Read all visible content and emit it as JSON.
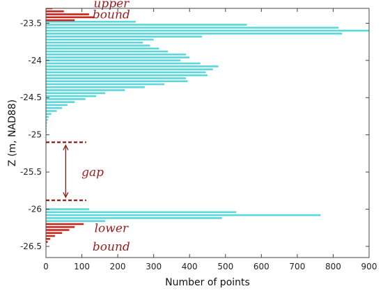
{
  "chart_data": {
    "type": "bar",
    "orientation": "horizontal",
    "xlabel": "Number of points",
    "ylabel": "Z (m, NAD88)",
    "xlim": [
      0,
      900
    ],
    "ylim": [
      -26.65,
      -23.3
    ],
    "x_ticks": [
      0,
      100,
      200,
      300,
      400,
      500,
      600,
      700,
      800,
      900
    ],
    "y_ticks": [
      -23.5,
      -24,
      -24.5,
      -25,
      -25.5,
      -26,
      -26.5
    ],
    "x_tick_labels": [
      "0",
      "100",
      "200",
      "300",
      "400",
      "500",
      "600",
      "700",
      "800",
      "900"
    ],
    "y_tick_labels": [
      "-23.5",
      "-24",
      "-24.5",
      "-25",
      "-25.5",
      "-26",
      "-26.5"
    ],
    "grid": false,
    "bin_height": 0.04,
    "colors": {
      "main": "#5dd8da",
      "bound": "#c8281e",
      "annotation": "#9b1c1c"
    },
    "series": [
      {
        "role": "main",
        "z": [
          -23.48,
          -23.52,
          -23.56,
          -23.6,
          -23.64,
          -23.68,
          -23.72,
          -23.76,
          -23.8,
          -23.84,
          -23.88,
          -23.92,
          -23.96,
          -24.0,
          -24.04,
          -24.08,
          -24.12,
          -24.16,
          -24.2,
          -24.24,
          -24.28,
          -24.32,
          -24.36,
          -24.4,
          -24.44,
          -24.48,
          -24.52,
          -24.56,
          -24.6,
          -24.64,
          -24.68,
          -24.72,
          -24.76,
          -24.8,
          -24.84,
          -24.88,
          -24.92,
          -24.96,
          -25.0,
          -25.04,
          -26.0,
          -26.04,
          -26.08,
          -26.12,
          -26.16
        ],
        "values": [
          250,
          560,
          815,
          900,
          825,
          435,
          300,
          270,
          290,
          315,
          340,
          390,
          400,
          375,
          430,
          480,
          465,
          445,
          450,
          390,
          395,
          330,
          275,
          220,
          165,
          140,
          110,
          80,
          60,
          45,
          30,
          15,
          8,
          5,
          3,
          2,
          2,
          2,
          1,
          1,
          120,
          530,
          765,
          490,
          165
        ]
      },
      {
        "role": "upper_bound",
        "z": [
          -23.3,
          -23.34,
          -23.38,
          -23.42,
          -23.46
        ],
        "values": [
          18,
          50,
          120,
          135,
          80
        ]
      },
      {
        "role": "lower_bound",
        "z": [
          -26.2,
          -26.24,
          -26.28,
          -26.32,
          -26.36,
          -26.4,
          -26.44
        ],
        "values": [
          105,
          80,
          65,
          45,
          25,
          12,
          5
        ]
      }
    ],
    "gap_lines": [
      {
        "z": -25.1,
        "x_range": [
          0,
          112
        ]
      },
      {
        "z": -25.88,
        "x_range": [
          0,
          112
        ]
      }
    ],
    "gap_arrow": {
      "x": 55,
      "z_range": [
        -25.14,
        -25.84
      ]
    },
    "annotations": [
      {
        "text": "upper",
        "x": 182,
        "z": -23.23
      },
      {
        "text": "bound",
        "x": 182,
        "z": -23.38
      },
      {
        "text": "gap",
        "x": 130,
        "z": -25.5
      },
      {
        "text": "lower",
        "x": 182,
        "z": -26.25
      },
      {
        "text": "bound",
        "x": 182,
        "z": -26.5
      }
    ]
  }
}
